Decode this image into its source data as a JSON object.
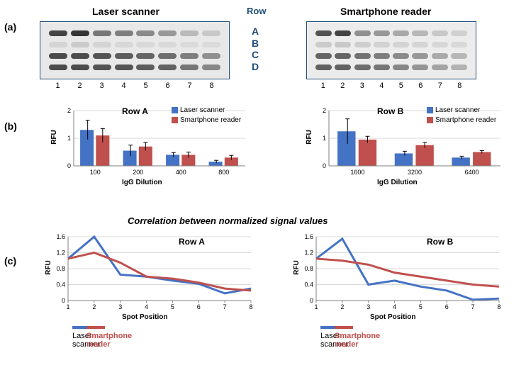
{
  "colors": {
    "laser": "#4472c4",
    "smart": "#c0504d",
    "axis": "#808080",
    "grid": "#d9d9d9",
    "rowlabel": "#1f4e79",
    "text": "#000000",
    "bg": "#ffffff"
  },
  "panelA": {
    "label": "(a)",
    "title_left": "Laser scanner",
    "title_right": "Smartphone reader",
    "row_header": "Row",
    "rows": [
      "A",
      "B",
      "C",
      "D"
    ],
    "cols": [
      "1",
      "2",
      "3",
      "4",
      "5",
      "6",
      "7",
      "8"
    ],
    "left_intensity": {
      "A": [
        0.9,
        0.98,
        0.6,
        0.55,
        0.48,
        0.4,
        0.2,
        0.12
      ],
      "B": [
        0.05,
        0.1,
        0.05,
        0.03,
        0.02,
        0.02,
        0.01,
        0.01
      ],
      "C": [
        0.85,
        0.85,
        0.8,
        0.75,
        0.7,
        0.65,
        0.55,
        0.45
      ],
      "D": [
        0.85,
        0.85,
        0.8,
        0.8,
        0.75,
        0.72,
        0.6,
        0.5
      ]
    },
    "right_intensity": {
      "A": [
        0.8,
        0.9,
        0.45,
        0.4,
        0.3,
        0.22,
        0.12,
        0.07
      ],
      "B": [
        0.1,
        0.12,
        0.08,
        0.06,
        0.05,
        0.04,
        0.03,
        0.02
      ],
      "C": [
        0.7,
        0.7,
        0.62,
        0.55,
        0.48,
        0.4,
        0.3,
        0.22
      ],
      "D": [
        0.72,
        0.72,
        0.65,
        0.6,
        0.5,
        0.42,
        0.33,
        0.25
      ]
    }
  },
  "panelB": {
    "label": "(b)",
    "ylab": "RFU",
    "xlab": "IgG Dilution",
    "legend_laser": "Laser scanner",
    "legend_smart": "Smartphone reader",
    "ylim": [
      0,
      2
    ],
    "ytick_step": 1,
    "bar_width": 0.35,
    "left": {
      "title": "Row A",
      "categories": [
        "100",
        "200",
        "400",
        "800"
      ],
      "laser": [
        1.3,
        0.55,
        0.4,
        0.15
      ],
      "smart": [
        1.1,
        0.7,
        0.4,
        0.3
      ],
      "err_laser": [
        0.35,
        0.2,
        0.08,
        0.05
      ],
      "err_smart": [
        0.25,
        0.15,
        0.1,
        0.08
      ]
    },
    "right": {
      "title": "Row B",
      "categories": [
        "1600",
        "3200",
        "6400"
      ],
      "laser": [
        1.25,
        0.45,
        0.3
      ],
      "smart": [
        0.95,
        0.75,
        0.5
      ],
      "err_laser": [
        0.45,
        0.08,
        0.05
      ],
      "err_smart": [
        0.12,
        0.1,
        0.05
      ]
    }
  },
  "panelC": {
    "label": "(c)",
    "corr_title": "Correlation between normalized signal values",
    "ylab": "RFU",
    "xlab": "Spot Position",
    "legend_laser": "Laser scanner",
    "legend_smart": "Smartphone reader",
    "ylim": [
      0,
      1.6
    ],
    "ytick_step": 0.4,
    "x": [
      1,
      2,
      3,
      4,
      5,
      6,
      7,
      8
    ],
    "left": {
      "title": "Row A",
      "laser": [
        1.05,
        1.6,
        0.65,
        0.6,
        0.5,
        0.42,
        0.18,
        0.3
      ],
      "smart": [
        1.05,
        1.2,
        0.95,
        0.6,
        0.55,
        0.45,
        0.3,
        0.25
      ]
    },
    "right": {
      "title": "Row B",
      "laser": [
        1.05,
        1.55,
        0.4,
        0.5,
        0.35,
        0.25,
        0.02,
        0.05
      ],
      "smart": [
        1.05,
        1.0,
        0.9,
        0.7,
        0.6,
        0.5,
        0.4,
        0.35
      ]
    }
  }
}
